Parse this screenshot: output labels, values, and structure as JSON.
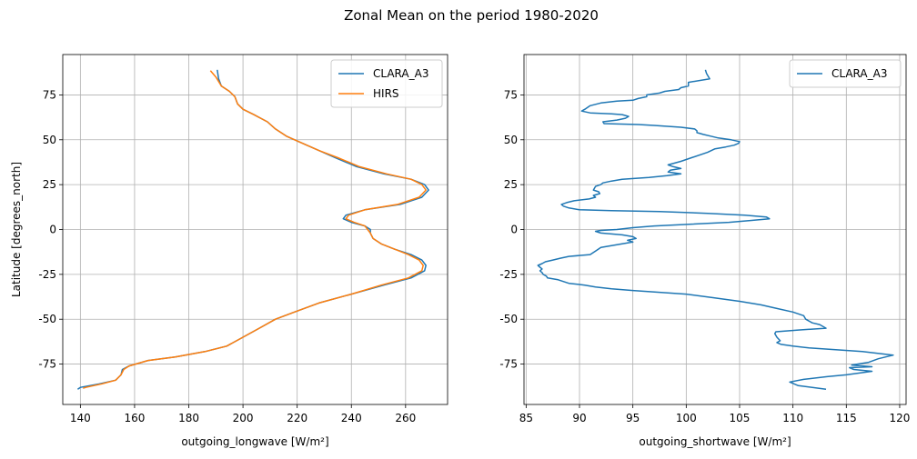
{
  "figure": {
    "suptitle": "Zonal Mean on the period 1980-2020"
  },
  "chart_data": [
    {
      "type": "line",
      "xlabel": "outgoing_longwave [W/m²]",
      "ylabel": "Latitude [degrees_north]",
      "xlim": [
        133.5,
        275.5
      ],
      "ylim": [
        -97.5,
        97.5
      ],
      "xticks": [
        140,
        160,
        180,
        200,
        220,
        240,
        260
      ],
      "yticks": [
        -75,
        -50,
        -25,
        0,
        25,
        50,
        75
      ],
      "grid": true,
      "legend_position": "top-right",
      "series": [
        {
          "name": "CLARA_A3",
          "color": "#1f77b4",
          "points": [
            [
              190.5,
              89
            ],
            [
              191,
              84
            ],
            [
              192,
              80
            ],
            [
              195,
              77
            ],
            [
              197,
              74
            ],
            [
              198,
              70
            ],
            [
              200,
              67
            ],
            [
              204,
              64
            ],
            [
              209,
              60
            ],
            [
              212,
              56
            ],
            [
              216,
              52
            ],
            [
              222,
              48
            ],
            [
              228,
              44
            ],
            [
              234,
              40
            ],
            [
              242,
              35
            ],
            [
              252,
              31
            ],
            [
              262,
              28
            ],
            [
              267,
              25
            ],
            [
              268.5,
              22
            ],
            [
              266,
              18
            ],
            [
              258,
              14
            ],
            [
              245,
              11
            ],
            [
              238,
              8
            ],
            [
              237,
              6
            ],
            [
              240,
              4
            ],
            [
              245,
              2
            ],
            [
              247,
              0
            ],
            [
              247,
              -2
            ],
            [
              248,
              -5
            ],
            [
              251,
              -8
            ],
            [
              256,
              -11
            ],
            [
              262,
              -14
            ],
            [
              266,
              -17
            ],
            [
              267.5,
              -20
            ],
            [
              267,
              -23
            ],
            [
              262,
              -27
            ],
            [
              252,
              -31
            ],
            [
              240,
              -36
            ],
            [
              228,
              -41
            ],
            [
              219,
              -46
            ],
            [
              212,
              -50
            ],
            [
              206,
              -55
            ],
            [
              200,
              -60
            ],
            [
              194,
              -65
            ],
            [
              186,
              -68
            ],
            [
              175,
              -71
            ],
            [
              165,
              -73
            ],
            [
              158,
              -76
            ],
            [
              155.5,
              -78
            ],
            [
              155,
              -81
            ],
            [
              153,
              -84
            ],
            [
              147,
              -86
            ],
            [
              140,
              -88
            ],
            [
              139,
              -89
            ]
          ]
        },
        {
          "name": "HIRS",
          "color": "#ff7f0e",
          "points": [
            [
              188,
              88.5
            ],
            [
              190,
              85
            ],
            [
              192,
              80
            ],
            [
              195,
              77
            ],
            [
              197,
              74
            ],
            [
              198,
              70
            ],
            [
              200,
              67
            ],
            [
              204,
              64
            ],
            [
              209,
              60
            ],
            [
              212,
              56
            ],
            [
              216,
              52
            ],
            [
              222,
              48
            ],
            [
              228,
              44
            ],
            [
              235,
              40
            ],
            [
              243,
              35
            ],
            [
              253,
              31
            ],
            [
              262,
              28
            ],
            [
              266,
              25
            ],
            [
              267.5,
              22
            ],
            [
              265,
              18
            ],
            [
              257,
              14
            ],
            [
              245,
              11
            ],
            [
              239,
              8
            ],
            [
              238,
              6
            ],
            [
              241,
              4
            ],
            [
              245,
              2
            ],
            [
              246,
              0
            ],
            [
              247,
              -2
            ],
            [
              248,
              -5
            ],
            [
              251,
              -8
            ],
            [
              256,
              -11
            ],
            [
              261,
              -14
            ],
            [
              265,
              -17
            ],
            [
              266.5,
              -20
            ],
            [
              266,
              -23
            ],
            [
              261,
              -27
            ],
            [
              251,
              -31
            ],
            [
              240,
              -36
            ],
            [
              228,
              -41
            ],
            [
              219,
              -46
            ],
            [
              212,
              -50
            ],
            [
              206,
              -55
            ],
            [
              200,
              -60
            ],
            [
              194,
              -65
            ],
            [
              186,
              -68
            ],
            [
              175,
              -71
            ],
            [
              165,
              -73
            ],
            [
              158,
              -76
            ],
            [
              156,
              -78
            ],
            [
              155,
              -81
            ],
            [
              153,
              -84
            ],
            [
              148,
              -86
            ],
            [
              142,
              -88
            ],
            [
              141,
              -88.5
            ]
          ]
        }
      ]
    },
    {
      "type": "line",
      "xlabel": "outgoing_shortwave [W/m²]",
      "ylabel": "",
      "xlim": [
        84.8,
        120.6
      ],
      "ylim": [
        -97.5,
        97.5
      ],
      "xticks": [
        85,
        90,
        95,
        100,
        105,
        110,
        115,
        120
      ],
      "yticks": [
        -75,
        -50,
        -25,
        0,
        25,
        50,
        75
      ],
      "grid": true,
      "legend_position": "top-right",
      "series": [
        {
          "name": "CLARA_A3",
          "color": "#1f77b4",
          "points": [
            [
              101.8,
              89
            ],
            [
              101.9,
              87
            ],
            [
              102.2,
              84
            ],
            [
              100.2,
              82
            ],
            [
              100.2,
              80
            ],
            [
              99.5,
              79
            ],
            [
              99.3,
              78
            ],
            [
              98,
              77
            ],
            [
              97.5,
              76
            ],
            [
              96.3,
              75
            ],
            [
              96.3,
              74
            ],
            [
              95.5,
              73
            ],
            [
              95,
              72
            ],
            [
              93.5,
              71.5
            ],
            [
              92,
              70.5
            ],
            [
              91,
              69
            ],
            [
              90.5,
              67
            ],
            [
              90.2,
              66
            ],
            [
              91,
              65
            ],
            [
              93,
              64.5
            ],
            [
              94,
              64
            ],
            [
              94.6,
              63
            ],
            [
              94.3,
              62
            ],
            [
              93.5,
              61
            ],
            [
              92.2,
              60
            ],
            [
              92.3,
              59
            ],
            [
              95.5,
              58.5
            ],
            [
              97,
              58
            ],
            [
              99.5,
              57
            ],
            [
              100.8,
              56
            ],
            [
              101,
              55
            ],
            [
              101,
              54
            ],
            [
              101.6,
              53
            ],
            [
              102.3,
              52
            ],
            [
              103,
              51
            ],
            [
              104.2,
              50
            ],
            [
              105,
              49
            ],
            [
              104.9,
              48
            ],
            [
              104.5,
              47
            ],
            [
              103.7,
              46
            ],
            [
              102.7,
              45
            ],
            [
              102,
              43
            ],
            [
              100.5,
              40
            ],
            [
              99.5,
              38
            ],
            [
              98.3,
              36
            ],
            [
              98.8,
              35
            ],
            [
              99.5,
              34
            ],
            [
              98.5,
              33
            ],
            [
              98.3,
              32
            ],
            [
              99.5,
              31
            ],
            [
              98.2,
              30
            ],
            [
              96.5,
              29
            ],
            [
              94,
              28
            ],
            [
              93,
              27
            ],
            [
              92.2,
              26
            ],
            [
              92,
              25
            ],
            [
              91.5,
              24
            ],
            [
              91.3,
              22
            ],
            [
              91.8,
              21
            ],
            [
              91.9,
              20
            ],
            [
              91.3,
              19
            ],
            [
              91.5,
              18
            ],
            [
              90.9,
              17
            ],
            [
              89.5,
              16
            ],
            [
              88.8,
              15
            ],
            [
              88.3,
              14
            ],
            [
              88.5,
              13
            ],
            [
              89,
              12
            ],
            [
              90,
              11
            ],
            [
              93,
              10.5
            ],
            [
              97.5,
              10
            ],
            [
              102,
              9
            ],
            [
              105.5,
              8
            ],
            [
              107.5,
              7
            ],
            [
              107.8,
              6
            ],
            [
              106,
              5
            ],
            [
              104,
              4
            ],
            [
              100.5,
              3
            ],
            [
              97,
              2
            ],
            [
              95,
              1
            ],
            [
              93.5,
              0
            ],
            [
              92,
              -0.5
            ],
            [
              91.5,
              -1
            ],
            [
              92,
              -2
            ],
            [
              94,
              -3
            ],
            [
              95,
              -4
            ],
            [
              95.3,
              -5
            ],
            [
              94.5,
              -6
            ],
            [
              95,
              -7
            ],
            [
              94,
              -8
            ],
            [
              93,
              -9
            ],
            [
              92,
              -10
            ],
            [
              91.5,
              -12
            ],
            [
              91,
              -14
            ],
            [
              89,
              -15
            ],
            [
              88.2,
              -16
            ],
            [
              87.5,
              -17
            ],
            [
              86.8,
              -18
            ],
            [
              86.5,
              -19
            ],
            [
              86.1,
              -20
            ],
            [
              86.3,
              -21
            ],
            [
              86.5,
              -22
            ],
            [
              86.3,
              -23
            ],
            [
              86.5,
              -24
            ],
            [
              86.6,
              -25
            ],
            [
              86.9,
              -26
            ],
            [
              87,
              -27
            ],
            [
              88,
              -28
            ],
            [
              89,
              -30
            ],
            [
              90.5,
              -31
            ],
            [
              91.5,
              -32
            ],
            [
              93,
              -33
            ],
            [
              95,
              -34
            ],
            [
              97.5,
              -35
            ],
            [
              100,
              -36
            ],
            [
              102.5,
              -38
            ],
            [
              105,
              -40
            ],
            [
              107,
              -42
            ],
            [
              108.5,
              -44
            ],
            [
              110,
              -46
            ],
            [
              111,
              -48
            ],
            [
              111.2,
              -50
            ],
            [
              111.8,
              -52
            ],
            [
              112.5,
              -53
            ],
            [
              113.1,
              -55
            ],
            [
              110.5,
              -56
            ],
            [
              108.4,
              -57
            ],
            [
              108.3,
              -58
            ],
            [
              108.5,
              -60
            ],
            [
              108.8,
              -62
            ],
            [
              108.5,
              -63
            ],
            [
              108.9,
              -64
            ],
            [
              110,
              -65
            ],
            [
              111.5,
              -66
            ],
            [
              114,
              -67
            ],
            [
              116.5,
              -68
            ],
            [
              119.4,
              -70
            ],
            [
              118,
              -72
            ],
            [
              117.1,
              -74
            ],
            [
              115.5,
              -75.5
            ],
            [
              117.4,
              -76.5
            ],
            [
              115.3,
              -77
            ],
            [
              115.7,
              -78
            ],
            [
              117.4,
              -79
            ],
            [
              115,
              -81
            ],
            [
              113.2,
              -82
            ],
            [
              111,
              -83.5
            ],
            [
              109.7,
              -85
            ],
            [
              110.5,
              -87
            ],
            [
              113.1,
              -89
            ]
          ]
        }
      ]
    }
  ]
}
